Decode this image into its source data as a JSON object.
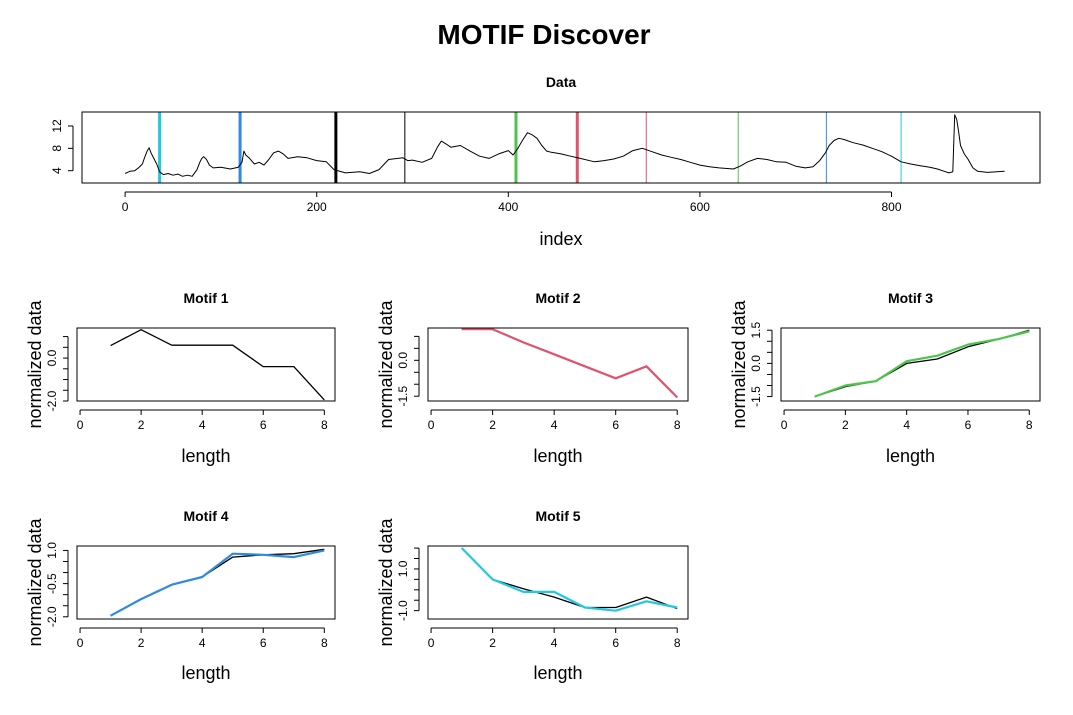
{
  "figure": {
    "main_title": "MOTIF Discover"
  },
  "chart_data": [
    {
      "id": "data",
      "type": "line",
      "title": "Data",
      "xlabel": "index",
      "ylabel": "",
      "xlim": [
        -45,
        955
      ],
      "ylim": [
        1.8,
        14.5
      ],
      "xticks": [
        0,
        200,
        400,
        600,
        800
      ],
      "yticks": [
        4,
        8,
        12
      ],
      "grid": false,
      "series": [
        {
          "color": "#000000",
          "points": [
            [
              0,
              3.5
            ],
            [
              5,
              3.9
            ],
            [
              10,
              4.0
            ],
            [
              14,
              4.5
            ],
            [
              18,
              5.2
            ],
            [
              20,
              6.2
            ],
            [
              23,
              7.5
            ],
            [
              25,
              8.1
            ],
            [
              27,
              7.2
            ],
            [
              30,
              6.2
            ],
            [
              33,
              5.2
            ],
            [
              36,
              3.8
            ],
            [
              40,
              3.3
            ],
            [
              45,
              3.5
            ],
            [
              50,
              3.2
            ],
            [
              55,
              3.4
            ],
            [
              60,
              3.0
            ],
            [
              65,
              3.2
            ],
            [
              70,
              3.0
            ],
            [
              75,
              4.2
            ],
            [
              78,
              5.5
            ],
            [
              80,
              6.2
            ],
            [
              82,
              6.5
            ],
            [
              85,
              6.0
            ],
            [
              88,
              5.0
            ],
            [
              92,
              4.5
            ],
            [
              100,
              4.6
            ],
            [
              110,
              4.3
            ],
            [
              118,
              4.6
            ],
            [
              122,
              5.5
            ],
            [
              124,
              7.5
            ],
            [
              126,
              6.8
            ],
            [
              130,
              6.2
            ],
            [
              135,
              5.2
            ],
            [
              140,
              5.5
            ],
            [
              145,
              5.0
            ],
            [
              150,
              6.0
            ],
            [
              155,
              7.2
            ],
            [
              160,
              7.5
            ],
            [
              165,
              7.0
            ],
            [
              170,
              6.2
            ],
            [
              180,
              6.5
            ],
            [
              190,
              6.3
            ],
            [
              200,
              5.8
            ],
            [
              210,
              5.6
            ],
            [
              218,
              4.2
            ],
            [
              230,
              3.6
            ],
            [
              245,
              3.8
            ],
            [
              255,
              3.5
            ],
            [
              265,
              4.2
            ],
            [
              275,
              6.0
            ],
            [
              290,
              6.3
            ],
            [
              295,
              5.8
            ],
            [
              300,
              5.9
            ],
            [
              310,
              5.5
            ],
            [
              320,
              6.2
            ],
            [
              326,
              8.2
            ],
            [
              330,
              9.3
            ],
            [
              335,
              8.8
            ],
            [
              340,
              8.2
            ],
            [
              350,
              8.5
            ],
            [
              360,
              7.5
            ],
            [
              370,
              6.6
            ],
            [
              380,
              6.2
            ],
            [
              390,
              7.0
            ],
            [
              400,
              7.6
            ],
            [
              405,
              6.8
            ],
            [
              410,
              8.0
            ],
            [
              415,
              9.5
            ],
            [
              420,
              10.8
            ],
            [
              425,
              10.4
            ],
            [
              430,
              9.8
            ],
            [
              435,
              8.5
            ],
            [
              440,
              7.5
            ],
            [
              445,
              7.3
            ],
            [
              455,
              7.0
            ],
            [
              465,
              6.6
            ],
            [
              475,
              6.2
            ],
            [
              490,
              5.6
            ],
            [
              500,
              5.8
            ],
            [
              510,
              6.1
            ],
            [
              520,
              6.6
            ],
            [
              530,
              7.6
            ],
            [
              540,
              8.0
            ],
            [
              550,
              7.4
            ],
            [
              560,
              6.8
            ],
            [
              570,
              6.4
            ],
            [
              580,
              6.0
            ],
            [
              590,
              5.5
            ],
            [
              600,
              5.0
            ],
            [
              610,
              4.7
            ],
            [
              620,
              4.5
            ],
            [
              635,
              4.3
            ],
            [
              642,
              4.8
            ],
            [
              650,
              5.6
            ],
            [
              660,
              6.2
            ],
            [
              670,
              6.0
            ],
            [
              680,
              5.6
            ],
            [
              690,
              5.5
            ],
            [
              700,
              4.8
            ],
            [
              710,
              4.5
            ],
            [
              718,
              4.7
            ],
            [
              725,
              5.8
            ],
            [
              731,
              7.2
            ],
            [
              735,
              8.5
            ],
            [
              740,
              9.4
            ],
            [
              745,
              9.8
            ],
            [
              750,
              9.6
            ],
            [
              760,
              9.0
            ],
            [
              770,
              8.6
            ],
            [
              780,
              8.0
            ],
            [
              790,
              7.4
            ],
            [
              800,
              6.6
            ],
            [
              810,
              5.6
            ],
            [
              820,
              5.2
            ],
            [
              830,
              4.9
            ],
            [
              840,
              4.6
            ],
            [
              848,
              4.3
            ],
            [
              855,
              3.9
            ],
            [
              860,
              3.6
            ],
            [
              864,
              3.8
            ],
            [
              866,
              14.0
            ],
            [
              868,
              13.2
            ],
            [
              870,
              11.0
            ],
            [
              872,
              8.5
            ],
            [
              876,
              7.0
            ],
            [
              880,
              6.0
            ],
            [
              885,
              4.5
            ],
            [
              890,
              3.9
            ],
            [
              900,
              3.7
            ],
            [
              910,
              3.8
            ],
            [
              918,
              3.9
            ]
          ]
        }
      ],
      "vlines": [
        {
          "x": 36,
          "color": "#22C7E1",
          "weight": "bold"
        },
        {
          "x": 120,
          "color": "#2E8BE0",
          "weight": "bold"
        },
        {
          "x": 220,
          "color": "#000000",
          "weight": "bold"
        },
        {
          "x": 292,
          "color": "#000000",
          "weight": "thin"
        },
        {
          "x": 408,
          "color": "#4CC54A",
          "weight": "bold"
        },
        {
          "x": 472,
          "color": "#DF536B",
          "weight": "bold"
        },
        {
          "x": 544,
          "color": "#DF536B",
          "weight": "thin"
        },
        {
          "x": 640,
          "color": "#4CC54A",
          "weight": "thin"
        },
        {
          "x": 732,
          "color": "#2E8BE0",
          "weight": "thin"
        },
        {
          "x": 810,
          "color": "#22C7E1",
          "weight": "thin"
        }
      ]
    },
    {
      "id": "motif1",
      "type": "line",
      "title": "Motif 1",
      "xlabel": "length",
      "ylabel": "normalized data",
      "xlim": [
        -0.1,
        8.35
      ],
      "ylim": [
        -2.0,
        1.4
      ],
      "xticks": [
        0,
        2,
        4,
        6,
        8
      ],
      "yticks": [
        -2.0,
        0.0
      ],
      "grid": false,
      "series": [
        {
          "color": "#000000",
          "x": [
            1,
            2,
            3,
            4,
            5,
            6,
            7,
            8
          ],
          "values": [
            0.58,
            1.32,
            0.6,
            0.6,
            0.6,
            -0.4,
            -0.4,
            -1.95
          ]
        }
      ]
    },
    {
      "id": "motif2",
      "type": "line",
      "title": "Motif 2",
      "xlabel": "length",
      "ylabel": "normalized data",
      "xlim": [
        -0.1,
        8.35
      ],
      "ylim": [
        -1.7,
        1.35
      ],
      "xticks": [
        0,
        2,
        4,
        6,
        8
      ],
      "yticks": [
        -1.5,
        0.0
      ],
      "grid": false,
      "series": [
        {
          "color": "#000000",
          "x": [
            1,
            2,
            3,
            4,
            5,
            6,
            7,
            8
          ],
          "values": [
            1.3,
            1.3,
            0.75,
            0.25,
            -0.25,
            -0.75,
            -0.25,
            -1.55
          ]
        },
        {
          "color": "#DF536B",
          "x": [
            1,
            2,
            3,
            4,
            5,
            6,
            7,
            8
          ],
          "values": [
            1.3,
            1.3,
            0.75,
            0.25,
            -0.25,
            -0.75,
            -0.25,
            -1.55
          ]
        }
      ]
    },
    {
      "id": "motif3",
      "type": "line",
      "title": "Motif 3",
      "xlabel": "length",
      "ylabel": "normalized data",
      "xlim": [
        -0.1,
        8.35
      ],
      "ylim": [
        -1.7,
        1.6
      ],
      "xticks": [
        0,
        2,
        4,
        6,
        8
      ],
      "yticks": [
        -1.5,
        0.0,
        1.5
      ],
      "grid": false,
      "series": [
        {
          "color": "#000000",
          "x": [
            1,
            2,
            3,
            4,
            5,
            6,
            7,
            8
          ],
          "values": [
            -1.5,
            -1.05,
            -0.8,
            0.0,
            0.2,
            0.75,
            1.1,
            1.5
          ]
        },
        {
          "color": "#4CC54A",
          "x": [
            1,
            2,
            3,
            4,
            5,
            6,
            7,
            8
          ],
          "values": [
            -1.5,
            -1.0,
            -0.8,
            0.1,
            0.35,
            0.85,
            1.1,
            1.45
          ]
        }
      ]
    },
    {
      "id": "motif4",
      "type": "line",
      "title": "Motif 4",
      "xlabel": "length",
      "ylabel": "normalized data",
      "xlim": [
        -0.1,
        8.35
      ],
      "ylim": [
        -2.1,
        1.2
      ],
      "xticks": [
        0,
        2,
        4,
        6,
        8
      ],
      "yticks": [
        -2.0,
        -0.5,
        1.0
      ],
      "grid": false,
      "series": [
        {
          "color": "#000000",
          "x": [
            1,
            2,
            3,
            4,
            5,
            6,
            7,
            8
          ],
          "values": [
            -1.95,
            -1.2,
            -0.55,
            -0.2,
            0.7,
            0.8,
            0.85,
            1.05
          ]
        },
        {
          "color": "#2E8BE0",
          "x": [
            1,
            2,
            3,
            4,
            5,
            6,
            7,
            8
          ],
          "values": [
            -1.95,
            -1.2,
            -0.55,
            -0.2,
            0.85,
            0.8,
            0.7,
            1.0
          ]
        }
      ]
    },
    {
      "id": "motif5",
      "type": "line",
      "title": "Motif 5",
      "xlabel": "length",
      "ylabel": "normalized data",
      "xlim": [
        -0.1,
        8.35
      ],
      "ylim": [
        -1.4,
        2.1
      ],
      "xticks": [
        0,
        2,
        4,
        6,
        8
      ],
      "yticks": [
        -1.0,
        1.0
      ],
      "grid": false,
      "series": [
        {
          "color": "#000000",
          "x": [
            1,
            2,
            3,
            4,
            5,
            6,
            7,
            8
          ],
          "values": [
            2.0,
            0.5,
            0.05,
            -0.35,
            -0.85,
            -0.85,
            -0.35,
            -0.9
          ]
        },
        {
          "color": "#22C7E1",
          "x": [
            1,
            2,
            3,
            4,
            5,
            6,
            7,
            8
          ],
          "values": [
            2.0,
            0.5,
            -0.1,
            -0.1,
            -0.85,
            -1.0,
            -0.55,
            -0.85
          ]
        }
      ]
    }
  ]
}
